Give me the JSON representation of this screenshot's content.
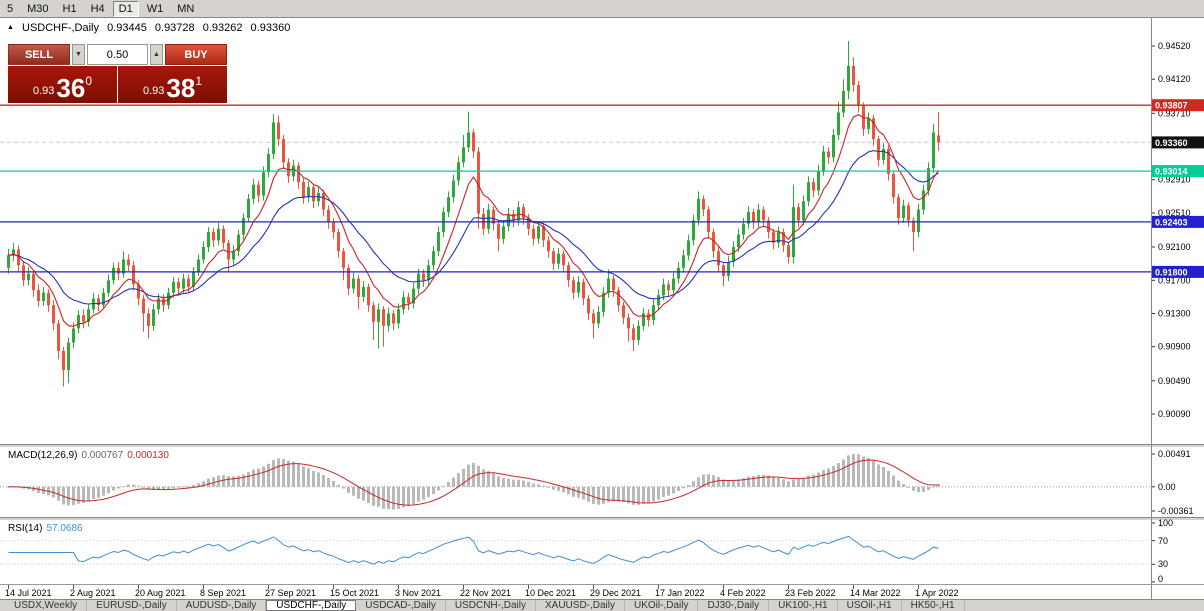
{
  "icons": {
    "panel_toggle": "▲",
    "spinner_down": "▼",
    "spinner_up": "▲"
  },
  "toolbar": {
    "buttons": [
      "5",
      "M30",
      "H1",
      "H4",
      "D1",
      "W1",
      "MN"
    ],
    "active": "D1"
  },
  "chart": {
    "symbol_label": "USDCHF-,Daily",
    "open": "0.93445",
    "high": "0.93728",
    "low": "0.93262",
    "close": "0.93360",
    "current_price": 0.9336,
    "price_axis": {
      "ticks": [
        0.9452,
        0.9412,
        0.9371,
        0.9291,
        0.9251,
        0.921,
        0.917,
        0.913,
        0.909,
        0.9049,
        0.9009
      ],
      "current_label": "0.93360",
      "current_bg": "#111111"
    },
    "levels": [
      {
        "text": "0.93807",
        "price": 0.93807,
        "color": "#d2281e"
      },
      {
        "text": "0.93014",
        "price": 0.93014,
        "color": "#00cd9a"
      },
      {
        "text": "0.92403",
        "price": 0.92403,
        "color": "#2121cf"
      },
      {
        "text": "0.91800",
        "price": 0.918,
        "color": "#2121cf"
      }
    ],
    "colors": {
      "up": "#2fa839",
      "down": "#e8563f",
      "ma_fast": "#cc2222",
      "ma_slow": "#2233bb",
      "bid_line": "#c9c9c9"
    },
    "ma_fast_period": 8,
    "ma_slow_period": 20
  },
  "trade": {
    "sell_label": "SELL",
    "buy_label": "BUY",
    "volume": "0.50",
    "sell_price_prefix": "0.93",
    "sell_price_big": "36",
    "sell_price_sup": "0",
    "buy_price_prefix": "0.93",
    "buy_price_big": "38",
    "buy_price_sup": "1"
  },
  "macd": {
    "label": "MACD(12,26,9)",
    "main_value": "0.000767",
    "signal_value": "0.000130",
    "axis_max": "0.00491",
    "axis_zero": "0.00",
    "axis_min": "-0.00361",
    "range_max": 0.00491,
    "range_min": -0.00361,
    "fast": 12,
    "slow": 26,
    "signal": 9,
    "histogram_color": "#b9b9b9",
    "signal_color": "#c62828"
  },
  "rsi": {
    "label": "RSI(14)",
    "value": "57.0686",
    "period": 14,
    "axis_labels": [
      "100",
      "70",
      "30",
      "0"
    ],
    "levels": [
      70,
      30
    ],
    "line_color": "#3f8fd4"
  },
  "tabs": {
    "items": [
      "USDX,Weekly",
      "EURUSD-,Daily",
      "AUDUSD-,Daily",
      "USDCHF-,Daily",
      "USDCAD-,Daily",
      "USDCNH-,Daily",
      "XAUUSD-,Daily",
      "UKOil-,Daily",
      "DJ30-,Daily",
      "UK100-,H1",
      "USOil-,H1",
      "HK50-,H1"
    ],
    "active": "USDCHF-,Daily"
  },
  "chart_data": {
    "type": "candlestick",
    "symbol": "USDCHF",
    "timeframe": "Daily",
    "title": "USDCHF-,Daily",
    "y_range": [
      0.8975,
      0.9486
    ],
    "current_ohlc": {
      "open": 0.93445,
      "high": 0.93728,
      "low": 0.93262,
      "close": 0.9336
    },
    "x_labels": [
      "14 Jul 2021",
      "2 Aug 2021",
      "20 Aug 2021",
      "8 Sep 2021",
      "27 Sep 2021",
      "15 Oct 2021",
      "3 Nov 2021",
      "22 Nov 2021",
      "10 Dec 2021",
      "29 Dec 2021",
      "17 Jan 2022",
      "4 Feb 2022",
      "23 Feb 2022",
      "14 Mar 2022",
      "1 Apr 2022"
    ],
    "x_label_step": 13,
    "ohlc": [
      [
        0.9185,
        0.9208,
        0.9178,
        0.92
      ],
      [
        0.92,
        0.9215,
        0.9193,
        0.9207
      ],
      [
        0.9207,
        0.9212,
        0.918,
        0.9188
      ],
      [
        0.9188,
        0.9193,
        0.9163,
        0.917
      ],
      [
        0.917,
        0.9186,
        0.9164,
        0.9178
      ],
      [
        0.9178,
        0.9182,
        0.915,
        0.9158
      ],
      [
        0.9158,
        0.9165,
        0.9138,
        0.9145
      ],
      [
        0.9145,
        0.9162,
        0.9139,
        0.9155
      ],
      [
        0.9155,
        0.9159,
        0.9132,
        0.914
      ],
      [
        0.914,
        0.9146,
        0.911,
        0.9118
      ],
      [
        0.9118,
        0.9122,
        0.9075,
        0.9085
      ],
      [
        0.9085,
        0.909,
        0.9042,
        0.9062
      ],
      [
        0.9062,
        0.9101,
        0.9046,
        0.9095
      ],
      [
        0.9095,
        0.9119,
        0.9088,
        0.9112
      ],
      [
        0.9112,
        0.9134,
        0.9106,
        0.9128
      ],
      [
        0.9128,
        0.9135,
        0.9112,
        0.912
      ],
      [
        0.912,
        0.9141,
        0.9114,
        0.9135
      ],
      [
        0.9135,
        0.9155,
        0.913,
        0.9148
      ],
      [
        0.9148,
        0.9153,
        0.9133,
        0.914
      ],
      [
        0.914,
        0.9161,
        0.9135,
        0.9155
      ],
      [
        0.9155,
        0.9177,
        0.915,
        0.917
      ],
      [
        0.917,
        0.9191,
        0.9165,
        0.9185
      ],
      [
        0.9185,
        0.9192,
        0.917,
        0.9178
      ],
      [
        0.9178,
        0.9205,
        0.9173,
        0.9195
      ],
      [
        0.9195,
        0.9201,
        0.9181,
        0.9188
      ],
      [
        0.9188,
        0.9193,
        0.9158,
        0.9165
      ],
      [
        0.9165,
        0.917,
        0.914,
        0.9148
      ],
      [
        0.9148,
        0.9152,
        0.9108,
        0.913
      ],
      [
        0.913,
        0.9136,
        0.91,
        0.9115
      ],
      [
        0.9115,
        0.9141,
        0.9109,
        0.9135
      ],
      [
        0.9135,
        0.9154,
        0.9129,
        0.9148
      ],
      [
        0.9148,
        0.9153,
        0.9132,
        0.914
      ],
      [
        0.914,
        0.9161,
        0.9135,
        0.9155
      ],
      [
        0.9155,
        0.9174,
        0.9149,
        0.9168
      ],
      [
        0.9168,
        0.9173,
        0.9152,
        0.916
      ],
      [
        0.916,
        0.9178,
        0.9155,
        0.9172
      ],
      [
        0.9172,
        0.9177,
        0.9154,
        0.9162
      ],
      [
        0.9162,
        0.9186,
        0.9157,
        0.918
      ],
      [
        0.918,
        0.9201,
        0.9175,
        0.9195
      ],
      [
        0.9195,
        0.9217,
        0.919,
        0.921
      ],
      [
        0.921,
        0.9234,
        0.9204,
        0.9228
      ],
      [
        0.9228,
        0.9233,
        0.921,
        0.9218
      ],
      [
        0.9218,
        0.9239,
        0.9212,
        0.9232
      ],
      [
        0.9232,
        0.9236,
        0.9208,
        0.9215
      ],
      [
        0.9215,
        0.9219,
        0.918,
        0.9195
      ],
      [
        0.9195,
        0.9212,
        0.9188,
        0.9205
      ],
      [
        0.9205,
        0.9231,
        0.9199,
        0.9225
      ],
      [
        0.9225,
        0.9251,
        0.9219,
        0.9245
      ],
      [
        0.9245,
        0.9274,
        0.924,
        0.9268
      ],
      [
        0.9268,
        0.9292,
        0.9262,
        0.9285
      ],
      [
        0.9285,
        0.929,
        0.9264,
        0.9272
      ],
      [
        0.9272,
        0.9307,
        0.9266,
        0.93
      ],
      [
        0.93,
        0.9329,
        0.9294,
        0.9322
      ],
      [
        0.9322,
        0.937,
        0.9316,
        0.936
      ],
      [
        0.936,
        0.9368,
        0.9332,
        0.934
      ],
      [
        0.934,
        0.9345,
        0.9304,
        0.9312
      ],
      [
        0.9312,
        0.9317,
        0.9287,
        0.9295
      ],
      [
        0.9295,
        0.9315,
        0.9289,
        0.9308
      ],
      [
        0.9308,
        0.9312,
        0.928,
        0.9288
      ],
      [
        0.9288,
        0.9293,
        0.9262,
        0.927
      ],
      [
        0.927,
        0.9289,
        0.9264,
        0.9282
      ],
      [
        0.9282,
        0.9286,
        0.9257,
        0.9265
      ],
      [
        0.9265,
        0.9282,
        0.9259,
        0.9275
      ],
      [
        0.9275,
        0.9279,
        0.9247,
        0.9255
      ],
      [
        0.9255,
        0.926,
        0.9232,
        0.924
      ],
      [
        0.924,
        0.9245,
        0.922,
        0.9228
      ],
      [
        0.9228,
        0.9232,
        0.9197,
        0.9205
      ],
      [
        0.9205,
        0.9209,
        0.917,
        0.9185
      ],
      [
        0.9185,
        0.9189,
        0.9152,
        0.916
      ],
      [
        0.916,
        0.9179,
        0.9154,
        0.9172
      ],
      [
        0.9172,
        0.9176,
        0.9135,
        0.915
      ],
      [
        0.915,
        0.9169,
        0.9144,
        0.9162
      ],
      [
        0.9162,
        0.9166,
        0.9132,
        0.914
      ],
      [
        0.914,
        0.9144,
        0.9098,
        0.912
      ],
      [
        0.912,
        0.9142,
        0.9088,
        0.9135
      ],
      [
        0.9135,
        0.9139,
        0.909,
        0.9115
      ],
      [
        0.9115,
        0.9137,
        0.9108,
        0.913
      ],
      [
        0.913,
        0.9134,
        0.911,
        0.9118
      ],
      [
        0.9118,
        0.9142,
        0.9112,
        0.9135
      ],
      [
        0.9135,
        0.9157,
        0.9129,
        0.915
      ],
      [
        0.915,
        0.9155,
        0.9134,
        0.9142
      ],
      [
        0.9142,
        0.9167,
        0.9136,
        0.916
      ],
      [
        0.916,
        0.9184,
        0.9154,
        0.9178
      ],
      [
        0.9178,
        0.9183,
        0.9162,
        0.917
      ],
      [
        0.917,
        0.9195,
        0.9164,
        0.9188
      ],
      [
        0.9188,
        0.9211,
        0.9182,
        0.9205
      ],
      [
        0.9205,
        0.9235,
        0.9199,
        0.9228
      ],
      [
        0.9228,
        0.9258,
        0.9222,
        0.9252
      ],
      [
        0.9252,
        0.9277,
        0.9246,
        0.927
      ],
      [
        0.927,
        0.9297,
        0.9264,
        0.929
      ],
      [
        0.929,
        0.9319,
        0.9284,
        0.9312
      ],
      [
        0.9312,
        0.9345,
        0.9306,
        0.933
      ],
      [
        0.933,
        0.9373,
        0.9324,
        0.9348
      ],
      [
        0.9348,
        0.9352,
        0.9317,
        0.9325
      ],
      [
        0.9325,
        0.933,
        0.9232,
        0.925
      ],
      [
        0.925,
        0.9257,
        0.9224,
        0.9232
      ],
      [
        0.9232,
        0.9262,
        0.9226,
        0.9255
      ],
      [
        0.9255,
        0.9259,
        0.923,
        0.9238
      ],
      [
        0.9238,
        0.9242,
        0.9205,
        0.922
      ],
      [
        0.922,
        0.9242,
        0.9214,
        0.9235
      ],
      [
        0.9235,
        0.9257,
        0.9229,
        0.925
      ],
      [
        0.925,
        0.9255,
        0.9234,
        0.9242
      ],
      [
        0.9242,
        0.9265,
        0.9236,
        0.9258
      ],
      [
        0.9258,
        0.9262,
        0.9237,
        0.9245
      ],
      [
        0.9245,
        0.925,
        0.9224,
        0.9232
      ],
      [
        0.9232,
        0.9237,
        0.9212,
        0.922
      ],
      [
        0.922,
        0.9241,
        0.9214,
        0.9235
      ],
      [
        0.9235,
        0.9239,
        0.921,
        0.9218
      ],
      [
        0.9218,
        0.9223,
        0.9197,
        0.9205
      ],
      [
        0.9205,
        0.9209,
        0.9182,
        0.919
      ],
      [
        0.919,
        0.9209,
        0.9184,
        0.9202
      ],
      [
        0.9202,
        0.9206,
        0.918,
        0.9188
      ],
      [
        0.9188,
        0.9192,
        0.9162,
        0.917
      ],
      [
        0.917,
        0.9174,
        0.9147,
        0.9155
      ],
      [
        0.9155,
        0.9175,
        0.9149,
        0.9168
      ],
      [
        0.9168,
        0.9172,
        0.914,
        0.9148
      ],
      [
        0.9148,
        0.9152,
        0.9122,
        0.913
      ],
      [
        0.913,
        0.9135,
        0.91,
        0.9118
      ],
      [
        0.9118,
        0.9139,
        0.9112,
        0.9132
      ],
      [
        0.9132,
        0.9162,
        0.9126,
        0.9155
      ],
      [
        0.9155,
        0.9183,
        0.9149,
        0.9172
      ],
      [
        0.9172,
        0.9176,
        0.915,
        0.9158
      ],
      [
        0.9158,
        0.9162,
        0.9132,
        0.914
      ],
      [
        0.914,
        0.9144,
        0.9117,
        0.9125
      ],
      [
        0.9125,
        0.913,
        0.9096,
        0.9112
      ],
      [
        0.9112,
        0.9117,
        0.9085,
        0.9098
      ],
      [
        0.9098,
        0.9122,
        0.9092,
        0.9115
      ],
      [
        0.9115,
        0.9137,
        0.9109,
        0.913
      ],
      [
        0.913,
        0.9135,
        0.9114,
        0.9122
      ],
      [
        0.9122,
        0.9147,
        0.9116,
        0.914
      ],
      [
        0.914,
        0.9159,
        0.9134,
        0.9152
      ],
      [
        0.9152,
        0.9172,
        0.9146,
        0.9165
      ],
      [
        0.9165,
        0.917,
        0.915,
        0.9158
      ],
      [
        0.9158,
        0.9179,
        0.9152,
        0.9172
      ],
      [
        0.9172,
        0.9192,
        0.9166,
        0.9185
      ],
      [
        0.9185,
        0.9207,
        0.9179,
        0.92
      ],
      [
        0.92,
        0.9225,
        0.9194,
        0.9218
      ],
      [
        0.9218,
        0.9249,
        0.9212,
        0.9242
      ],
      [
        0.9242,
        0.9277,
        0.9236,
        0.9268
      ],
      [
        0.9268,
        0.9272,
        0.9247,
        0.9255
      ],
      [
        0.9255,
        0.9259,
        0.922,
        0.9228
      ],
      [
        0.9228,
        0.9232,
        0.9197,
        0.9205
      ],
      [
        0.9205,
        0.921,
        0.918,
        0.9188
      ],
      [
        0.9188,
        0.9192,
        0.9163,
        0.9175
      ],
      [
        0.9175,
        0.9199,
        0.9169,
        0.9192
      ],
      [
        0.9192,
        0.9217,
        0.9186,
        0.921
      ],
      [
        0.921,
        0.9232,
        0.9204,
        0.9225
      ],
      [
        0.9225,
        0.9245,
        0.9219,
        0.9238
      ],
      [
        0.9238,
        0.9259,
        0.9232,
        0.9252
      ],
      [
        0.9252,
        0.9256,
        0.9232,
        0.924
      ],
      [
        0.924,
        0.9262,
        0.9234,
        0.9255
      ],
      [
        0.9255,
        0.9259,
        0.9234,
        0.9242
      ],
      [
        0.9242,
        0.9246,
        0.922,
        0.9228
      ],
      [
        0.9228,
        0.9232,
        0.9207,
        0.9215
      ],
      [
        0.9215,
        0.9235,
        0.9209,
        0.9228
      ],
      [
        0.9228,
        0.9232,
        0.9204,
        0.9212
      ],
      [
        0.9212,
        0.9216,
        0.919,
        0.9198
      ],
      [
        0.9198,
        0.9285,
        0.919,
        0.9258
      ],
      [
        0.9258,
        0.9263,
        0.9234,
        0.9242
      ],
      [
        0.9242,
        0.9272,
        0.9236,
        0.9265
      ],
      [
        0.9265,
        0.9295,
        0.9259,
        0.9288
      ],
      [
        0.9288,
        0.9293,
        0.927,
        0.9278
      ],
      [
        0.9278,
        0.9309,
        0.9272,
        0.9302
      ],
      [
        0.9302,
        0.9332,
        0.9296,
        0.9325
      ],
      [
        0.9325,
        0.933,
        0.931,
        0.9318
      ],
      [
        0.9318,
        0.9352,
        0.9312,
        0.9345
      ],
      [
        0.9345,
        0.9385,
        0.9339,
        0.9372
      ],
      [
        0.9372,
        0.9412,
        0.9366,
        0.9398
      ],
      [
        0.9398,
        0.9458,
        0.9388,
        0.9428
      ],
      [
        0.9428,
        0.9438,
        0.9397,
        0.9405
      ],
      [
        0.9405,
        0.941,
        0.9372,
        0.938
      ],
      [
        0.938,
        0.9384,
        0.9344,
        0.9352
      ],
      [
        0.9352,
        0.9372,
        0.9346,
        0.9365
      ],
      [
        0.9365,
        0.9369,
        0.9332,
        0.934
      ],
      [
        0.934,
        0.9344,
        0.9307,
        0.9315
      ],
      [
        0.9315,
        0.9335,
        0.9309,
        0.9328
      ],
      [
        0.9328,
        0.9332,
        0.929,
        0.9298
      ],
      [
        0.9298,
        0.9302,
        0.9262,
        0.927
      ],
      [
        0.927,
        0.9274,
        0.9237,
        0.9245
      ],
      [
        0.9245,
        0.9267,
        0.9239,
        0.926
      ],
      [
        0.926,
        0.9264,
        0.9234,
        0.9242
      ],
      [
        0.9242,
        0.9246,
        0.9205,
        0.9228
      ],
      [
        0.9228,
        0.9262,
        0.9222,
        0.9255
      ],
      [
        0.9255,
        0.9285,
        0.9249,
        0.9278
      ],
      [
        0.9278,
        0.9312,
        0.9272,
        0.9305
      ],
      [
        0.9305,
        0.9358,
        0.9299,
        0.9348
      ],
      [
        0.93445,
        0.93728,
        0.93262,
        0.9336
      ]
    ]
  }
}
